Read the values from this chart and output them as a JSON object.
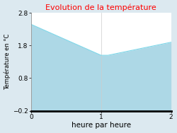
{
  "title": "Evolution de la température",
  "xlabel": "heure par heure",
  "ylabel": "Température en °C",
  "x": [
    0,
    1.0,
    1.1,
    2.0
  ],
  "y": [
    2.45,
    1.5,
    1.5,
    1.9
  ],
  "ylim": [
    -0.2,
    2.8
  ],
  "xlim": [
    0,
    2
  ],
  "yticks": [
    -0.2,
    0.8,
    1.8,
    2.8
  ],
  "xticks": [
    0,
    1,
    2
  ],
  "line_color": "#7dd6e8",
  "fill_color": "#add8e6",
  "plot_bg": "#ffffff",
  "fig_bg": "#dce9f0",
  "title_color": "#ff0000",
  "title_fontsize": 8,
  "axis_fontsize": 6.5,
  "xlabel_fontsize": 7.5,
  "ylabel_fontsize": 6
}
